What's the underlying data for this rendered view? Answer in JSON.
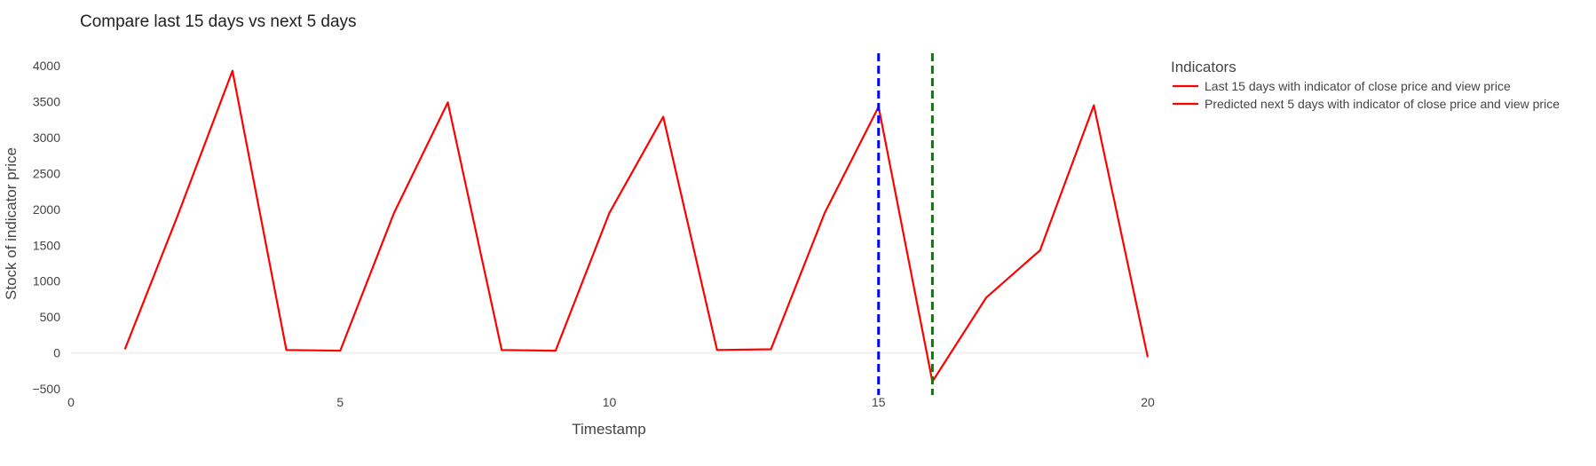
{
  "chart_data": {
    "type": "line",
    "title": "Compare last 15 days vs next 5 days",
    "xlabel": "Timestamp",
    "ylabel": "Stock of indicator price",
    "xlim": [
      0,
      20
    ],
    "ylim": [
      -500,
      4200
    ],
    "x_ticks": [
      0,
      5,
      10,
      15,
      20
    ],
    "y_ticks": [
      -500,
      0,
      500,
      1000,
      1500,
      2000,
      2500,
      3000,
      3500,
      4000
    ],
    "grid": false,
    "legend": {
      "title": "Indicators",
      "placement": "right"
    },
    "series": [
      {
        "name": "Last 15 days with indicator of close price and view price",
        "color": "#ff0000",
        "x": [
          1,
          2,
          3,
          4,
          5,
          6,
          7,
          8,
          9,
          10,
          11,
          12,
          13,
          14,
          15
        ],
        "y": [
          50,
          1950,
          3930,
          40,
          30,
          1950,
          3490,
          40,
          30,
          1950,
          3290,
          40,
          50,
          1950,
          3430
        ]
      },
      {
        "name": "Predicted next 5 days with indicator of close price and view price",
        "color": "#ff0000",
        "x": [
          15,
          16,
          17,
          18,
          19,
          20
        ],
        "y": [
          3430,
          -400,
          770,
          1430,
          3450,
          -60
        ]
      }
    ],
    "vertical_lines": [
      {
        "x": 15,
        "color": "#0000ff",
        "style": "dashed"
      },
      {
        "x": 16,
        "color": "#008000",
        "style": "dashed"
      }
    ]
  }
}
